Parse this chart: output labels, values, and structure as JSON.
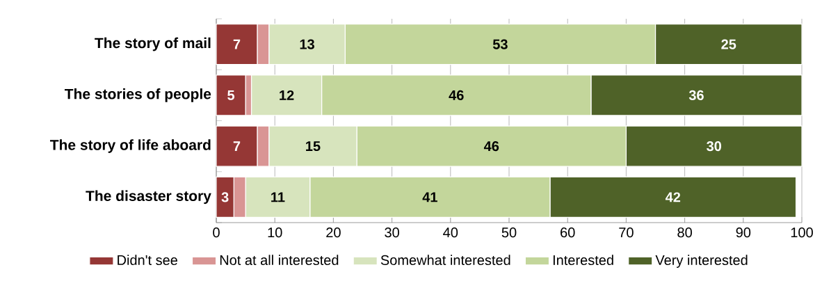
{
  "chart_data": {
    "type": "bar",
    "orientation": "horizontal",
    "stacked": true,
    "categories": [
      "The story of mail",
      "The stories of people",
      "The story of life aboard",
      "The disaster story"
    ],
    "series": [
      {
        "name": "Didn't see",
        "color": "#953735",
        "values": [
          7,
          5,
          7,
          3
        ],
        "value_labels": [
          "7",
          "5",
          "7",
          "3"
        ]
      },
      {
        "name": "Not at all interested",
        "color": "#d99594",
        "values": [
          2,
          1,
          2,
          2
        ],
        "value_labels": [
          null,
          null,
          null,
          null
        ]
      },
      {
        "name": "Somewhat interested",
        "color": "#d7e4bd",
        "values": [
          13,
          12,
          15,
          11
        ],
        "value_labels": [
          "13",
          "12",
          "15",
          "11"
        ]
      },
      {
        "name": "Interested",
        "color": "#c3d69b",
        "values": [
          53,
          46,
          46,
          41
        ],
        "value_labels": [
          "53",
          "46",
          "46",
          "41"
        ]
      },
      {
        "name": "Very interested",
        "color": "#4f6228",
        "values": [
          25,
          36,
          30,
          42
        ],
        "value_labels": [
          "25",
          "36",
          "30",
          "42"
        ]
      }
    ],
    "xlim": [
      0,
      100
    ],
    "xticks": [
      0,
      10,
      20,
      30,
      40,
      50,
      60,
      70,
      80,
      90,
      100
    ],
    "grid": "x",
    "legend": "bottom"
  }
}
